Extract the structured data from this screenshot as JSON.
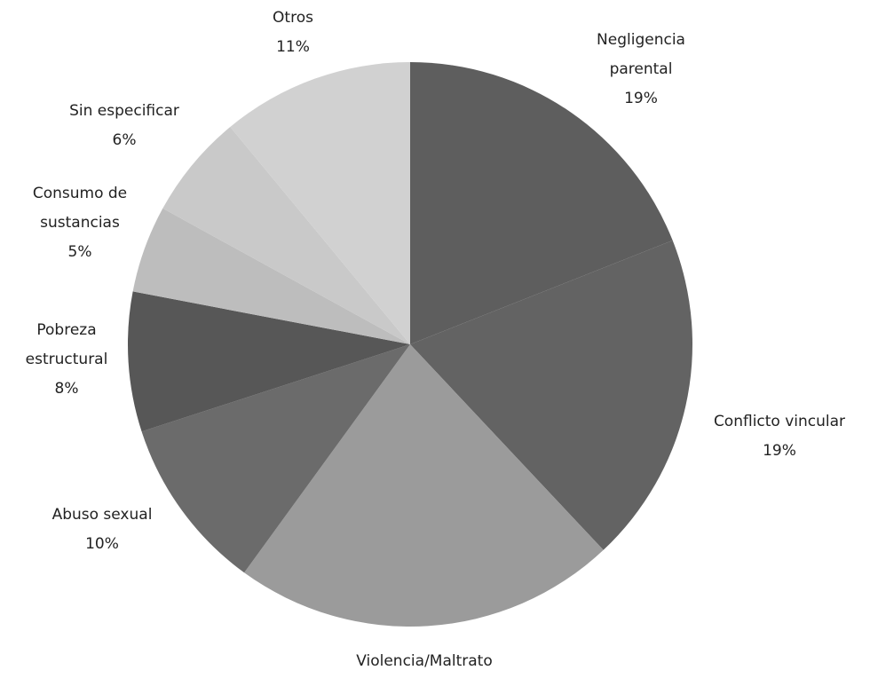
{
  "chart_data": {
    "type": "pie",
    "categories": [
      "Negligencia parental",
      "Conflicto vincular",
      "Violencia/Maltrato",
      "Abuso sexual",
      "Pobreza estructural",
      "Consumo de sustancias",
      "Sin especificar",
      "Otros"
    ],
    "values": [
      19,
      19,
      22,
      10,
      8,
      5,
      6,
      11
    ],
    "value_labels": [
      "19%",
      "19%",
      null,
      "10%",
      "8%",
      "5%",
      "6%",
      "11%"
    ],
    "colors": [
      "#5e5e5e",
      "#636363",
      "#9b9b9b",
      "#6b6b6b",
      "#575757",
      "#bdbdbd",
      "#c9c9c9",
      "#d1d1d1"
    ]
  }
}
